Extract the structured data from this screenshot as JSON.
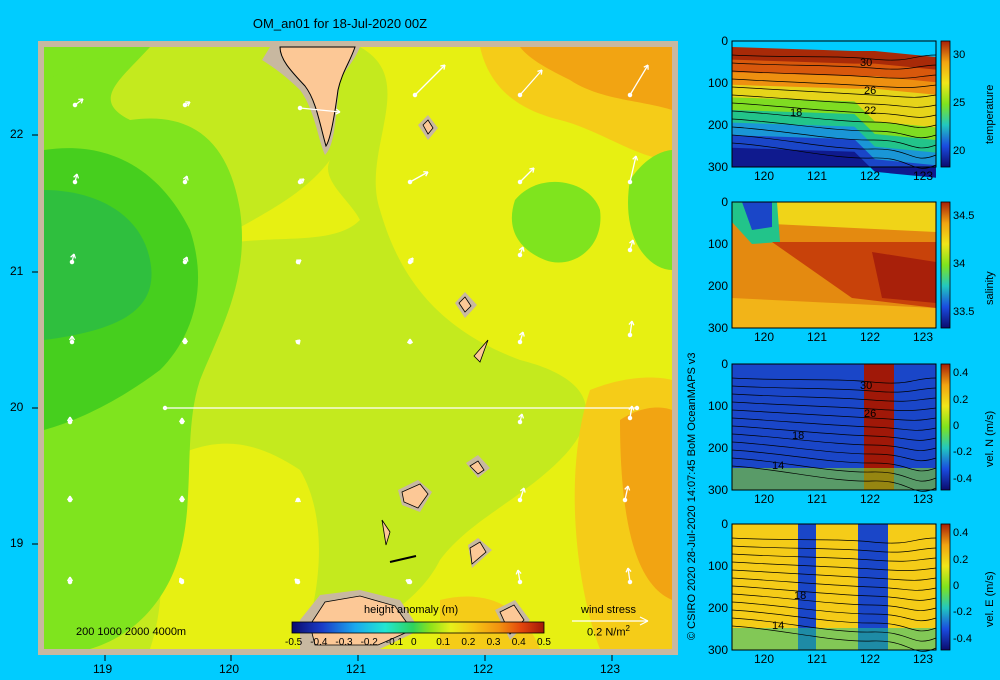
{
  "map": {
    "title": "OM_an01 for 18-Jul-2020 00Z",
    "lon_ticks": [
      "119",
      "120",
      "121",
      "122",
      "123"
    ],
    "lat_ticks": [
      "22",
      "21",
      "20",
      "19"
    ],
    "depth_legend": "200  1000  2000  4000m",
    "colorbar_title": "height anomaly (m)",
    "colorbar_ticks": [
      "-0.5",
      "-0.4",
      "-0.3",
      "-0.2",
      "-0.1",
      "0",
      "0.1",
      "0.2",
      "0.3",
      "0.4",
      "0.5"
    ],
    "wind_title": "wind stress",
    "wind_scale": "0.2 N/m",
    "wind_scale_sup": "2"
  },
  "credit": "© CSIRO 2020   28-Jul-2020 14:07:45 BoM OceanMAPS v3",
  "panels": [
    {
      "name": "temperature",
      "x_ticks": [
        "120",
        "121",
        "122",
        "123"
      ],
      "y_ticks": [
        "0",
        "100",
        "200",
        "300"
      ],
      "cb_label": "temperature",
      "cb_ticks": [
        "30",
        "25",
        "20"
      ],
      "contour_labels": [
        "30",
        "26",
        "22",
        "18"
      ]
    },
    {
      "name": "salinity",
      "x_ticks": [
        "120",
        "121",
        "122",
        "123"
      ],
      "y_ticks": [
        "0",
        "100",
        "200",
        "300"
      ],
      "cb_label": "salinity",
      "cb_ticks": [
        "34.5",
        "34",
        "33.5"
      ],
      "contour_labels": []
    },
    {
      "name": "vel-n",
      "x_ticks": [
        "120",
        "121",
        "122",
        "123"
      ],
      "y_ticks": [
        "0",
        "100",
        "200",
        "300"
      ],
      "cb_label": "vel. N (m/s)",
      "cb_ticks": [
        "0.4",
        "0.2",
        "0",
        "-0.2",
        "-0.4"
      ],
      "contour_labels": [
        "30",
        "26",
        "18",
        "14"
      ]
    },
    {
      "name": "vel-e",
      "x_ticks": [
        "120",
        "121",
        "122",
        "123"
      ],
      "y_ticks": [
        "0",
        "100",
        "200",
        "300"
      ],
      "cb_label": "vel. E (m/s)",
      "cb_ticks": [
        "0.4",
        "0.2",
        "0",
        "-0.2",
        "-0.4"
      ],
      "contour_labels": [
        "18",
        "14"
      ]
    }
  ]
}
